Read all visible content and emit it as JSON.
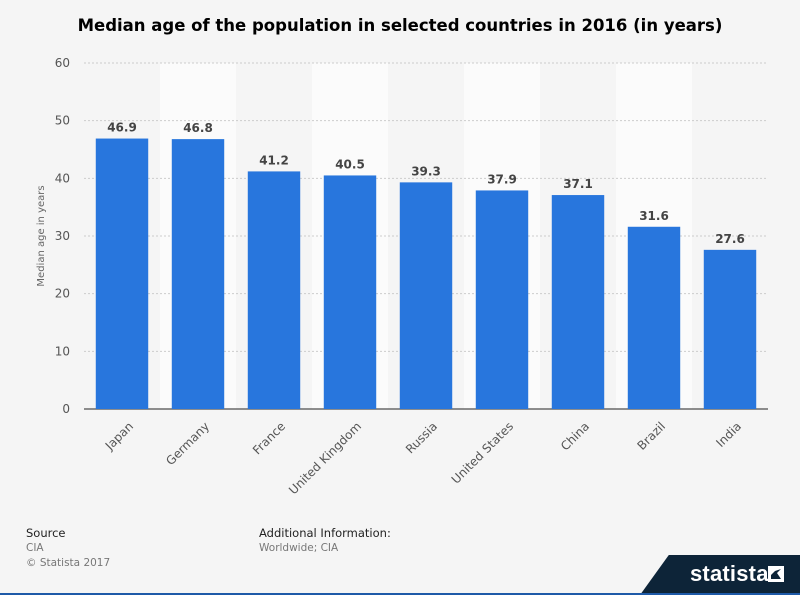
{
  "chart_data": {
    "type": "bar",
    "title": "Median age of the population in selected countries in 2016 (in years)",
    "ylabel": "Median age in years",
    "xlabel": "",
    "ylim": [
      0,
      60
    ],
    "yticks": [
      0,
      10,
      20,
      30,
      40,
      50,
      60
    ],
    "categories": [
      "Japan",
      "Germany",
      "France",
      "United Kingdom",
      "Russia",
      "United States",
      "China",
      "Brazil",
      "India"
    ],
    "values": [
      46.9,
      46.8,
      41.2,
      40.5,
      39.3,
      37.9,
      37.1,
      31.6,
      27.6
    ],
    "value_labels": [
      "46.9",
      "46.8",
      "41.2",
      "40.5",
      "39.3",
      "37.9",
      "37.1",
      "31.6",
      "27.6"
    ],
    "grid": true,
    "bar_color": "#2876dd"
  },
  "footer": {
    "source_head": "Source",
    "source_value": "CIA",
    "copyright": "© Statista 2017",
    "info_head": "Additional Information:",
    "info_value": "Worldwide; CIA"
  },
  "brand": {
    "name": "statista"
  }
}
